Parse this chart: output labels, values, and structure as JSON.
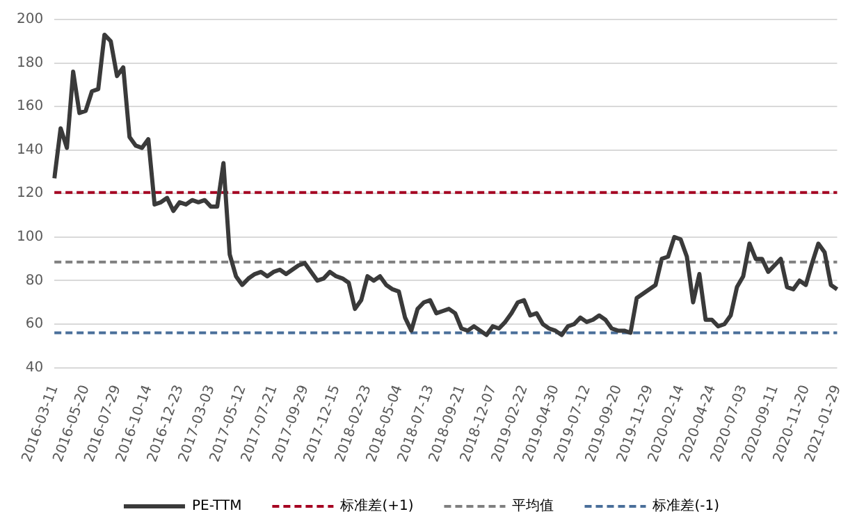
{
  "chart_data": {
    "type": "line",
    "categories": [
      "2016-03-11",
      null,
      null,
      null,
      null,
      "2016-05-20",
      null,
      null,
      null,
      null,
      "2016-07-29",
      null,
      null,
      null,
      null,
      "2016-10-14",
      null,
      null,
      null,
      null,
      "2016-12-23",
      null,
      null,
      null,
      null,
      "2017-03-03",
      null,
      null,
      null,
      null,
      "2017-05-12",
      null,
      null,
      null,
      null,
      "2017-07-21",
      null,
      null,
      null,
      null,
      "2017-09-29",
      null,
      null,
      null,
      null,
      "2017-12-15",
      null,
      null,
      null,
      null,
      "2018-02-23",
      null,
      null,
      null,
      null,
      "2018-05-04",
      null,
      null,
      null,
      null,
      "2018-07-13",
      null,
      null,
      null,
      null,
      "2018-09-21",
      null,
      null,
      null,
      null,
      "2018-12-07",
      null,
      null,
      null,
      null,
      "2019-02-22",
      null,
      null,
      null,
      null,
      "2019-04-30",
      null,
      null,
      null,
      null,
      "2019-07-12",
      null,
      null,
      null,
      null,
      "2019-09-20",
      null,
      null,
      null,
      null,
      "2019-11-29",
      null,
      null,
      null,
      null,
      "2020-02-14",
      null,
      null,
      null,
      null,
      "2020-04-24",
      null,
      null,
      null,
      null,
      "2020-07-03",
      null,
      null,
      null,
      null,
      "2020-09-11",
      null,
      null,
      null,
      null,
      "2020-11-20",
      null,
      null,
      null,
      null,
      "2021-01-29"
    ],
    "series": [
      {
        "name": "PE-TTM",
        "color": "#3a3a3a",
        "values": [
          127,
          150,
          141,
          176,
          157,
          158,
          167,
          168,
          193,
          190,
          174,
          178,
          146,
          142,
          141,
          145,
          115,
          116,
          118,
          112,
          116,
          115,
          117,
          116,
          117,
          114,
          114,
          134,
          92,
          82,
          78,
          81,
          83,
          84,
          82,
          84,
          85,
          83,
          85,
          87,
          88,
          84,
          80,
          81,
          84,
          82,
          81,
          79,
          67,
          71,
          82,
          80,
          82,
          78,
          76,
          75,
          63,
          57,
          67,
          70,
          71,
          65,
          66,
          67,
          65,
          58,
          57,
          59,
          57,
          55,
          59,
          58,
          61,
          65,
          70,
          71,
          64,
          65,
          60,
          58,
          57,
          55,
          59,
          60,
          63,
          61,
          62,
          64,
          62,
          58,
          57,
          57,
          56,
          72,
          74,
          76,
          78,
          90,
          91,
          100,
          99,
          91,
          70,
          83,
          62,
          62,
          59,
          60,
          64,
          77,
          82,
          97,
          90,
          90,
          84,
          87,
          90,
          77,
          76,
          80,
          78,
          88,
          97,
          93,
          78,
          76
        ]
      }
    ],
    "ref_lines": [
      {
        "axis": "y",
        "value": 120.5,
        "label": "标准差(+1)",
        "color": "#a50021",
        "line_style": "dashed"
      },
      {
        "axis": "y",
        "value": 88.5,
        "label": "平均值",
        "color": "#7f7f7f",
        "line_style": "dashed"
      },
      {
        "axis": "y",
        "value": 56,
        "label": "标准差(-1)",
        "color": "#4a6f9a",
        "line_style": "dashed"
      }
    ],
    "ylim": [
      40,
      200
    ],
    "yticks": [
      40,
      60,
      80,
      100,
      120,
      140,
      160,
      180,
      200
    ],
    "grid": "y",
    "legend": "bottom",
    "marker": "none",
    "line_style": "solid"
  }
}
